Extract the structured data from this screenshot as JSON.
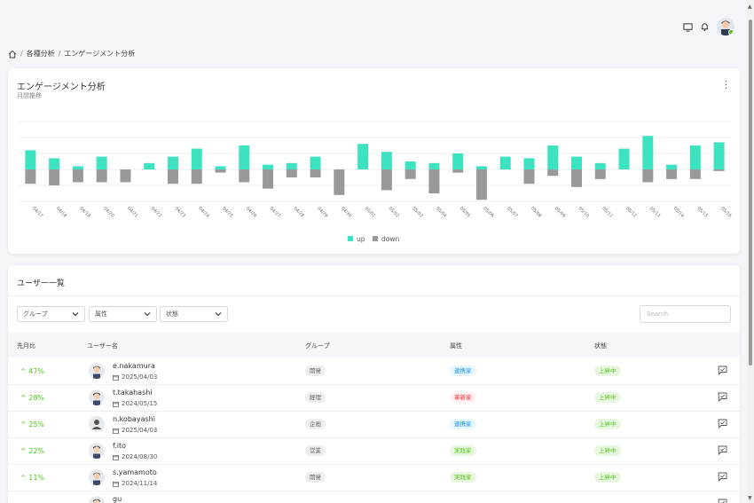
{
  "breadcrumb": {
    "items": [
      "各種分析",
      "エンゲージメント分析"
    ]
  },
  "chart_card": {
    "title": "エンゲージメント分析",
    "subtitle": "月間推移"
  },
  "chart_data": {
    "type": "bar",
    "categories": [
      "04/17",
      "04/18",
      "04/19",
      "04/20",
      "04/21",
      "04/22",
      "04/23",
      "04/24",
      "04/25",
      "04/26",
      "04/27",
      "04/28",
      "04/29",
      "04/30",
      "05/01",
      "05/02",
      "05/03",
      "05/04",
      "05/05",
      "05/06",
      "05/07",
      "05/08",
      "05/09",
      "05/10",
      "05/11",
      "05/12",
      "05/13",
      "05/14",
      "05/15",
      "05/16"
    ],
    "series": [
      {
        "name": "up",
        "color": "#3de3c1",
        "values": [
          1.2,
          0.7,
          0.2,
          0.8,
          0,
          0.4,
          0.8,
          1.3,
          0.2,
          1.5,
          0.3,
          0.4,
          0.8,
          0,
          1.6,
          1.1,
          0.5,
          0.4,
          1.0,
          0.2,
          0.8,
          0.7,
          1.5,
          0.8,
          0.4,
          1.3,
          2.1,
          0.3,
          1.5,
          1.7
        ]
      },
      {
        "name": "down",
        "color": "#999999",
        "values": [
          -0.9,
          -1.0,
          -0.8,
          -0.8,
          -0.8,
          0,
          -0.9,
          -0.9,
          -0.2,
          -0.8,
          -1.2,
          -0.5,
          -0.5,
          -1.6,
          0,
          -1.3,
          -0.6,
          -1.5,
          -0.2,
          -1.9,
          0,
          -0.9,
          -0.4,
          -1.1,
          -0.6,
          0,
          -0.8,
          -0.6,
          -0.6,
          -0.1
        ]
      }
    ],
    "legend": "bottom",
    "grid": true
  },
  "users_card": {
    "title": "ユーザー一覧",
    "filters": [
      "グループ",
      "属性",
      "状態"
    ],
    "search_placeholder": "Search",
    "columns": [
      "先月比",
      "ユーザー名",
      "グループ",
      "属性",
      "状態"
    ],
    "rows": [
      {
        "pct": "^ 47%",
        "name": "e.nakamura",
        "date": "2025/04/03",
        "group": "開発",
        "attr": "連携家",
        "attr_color": "blue",
        "status": "上昇中"
      },
      {
        "pct": "^ 28%",
        "name": "t.takahashi",
        "date": "2024/05/15",
        "group": "経理",
        "attr": "革新家",
        "attr_color": "red",
        "status": "上昇中"
      },
      {
        "pct": "^ 25%",
        "name": "n.kobayashi",
        "date": "2025/04/03",
        "group": "企画",
        "attr": "連携家",
        "attr_color": "blue",
        "status": "上昇中"
      },
      {
        "pct": "^ 22%",
        "name": "f.ito",
        "date": "2024/08/30",
        "group": "営業",
        "attr": "実践家",
        "attr_color": "green",
        "status": "上昇中"
      },
      {
        "pct": "^ 11%",
        "name": "s.yamamoto",
        "date": "2024/11/14",
        "group": "開発",
        "attr": "実践家",
        "attr_color": "green",
        "status": "上昇中"
      },
      {
        "pct": "",
        "name": "gu",
        "date": "",
        "group": "",
        "attr": "",
        "attr_color": "green",
        "status": ""
      }
    ]
  },
  "colors": {
    "accent": "#3de3c1",
    "down": "#999999",
    "positive": "#52c41a"
  }
}
